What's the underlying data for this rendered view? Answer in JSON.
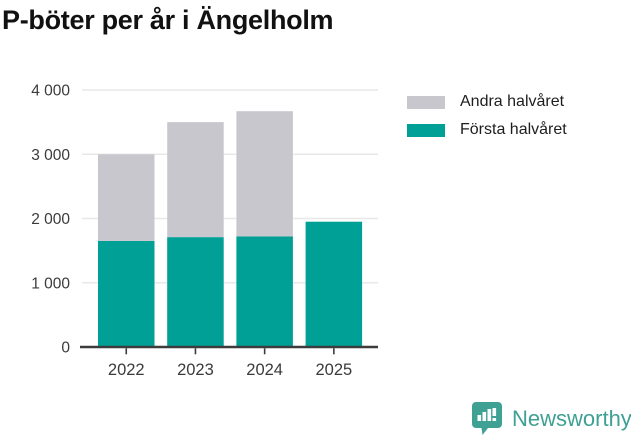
{
  "title": "P-böter per år i Ängelholm",
  "chart_data": {
    "type": "bar",
    "stacked": true,
    "title": "P-böter per år i Ängelholm",
    "categories": [
      "2022",
      "2023",
      "2024",
      "2025"
    ],
    "series": [
      {
        "name": "Andra halvåret",
        "color": "#C8C7CE",
        "values": [
          1350,
          1790,
          1950,
          0
        ]
      },
      {
        "name": "Första halvåret",
        "color": "#00A096",
        "values": [
          1650,
          1710,
          1720,
          1950
        ]
      }
    ],
    "xlabel": "",
    "ylabel": "",
    "ylim": [
      0,
      4000
    ],
    "yticks": [
      {
        "value": 0,
        "label": "0"
      },
      {
        "value": 1000,
        "label": "1 000"
      },
      {
        "value": 2000,
        "label": "2 000"
      },
      {
        "value": 3000,
        "label": "3 000"
      },
      {
        "value": 4000,
        "label": "4 000"
      }
    ],
    "grid": true,
    "legend_position": "top-right"
  },
  "footer": {
    "brand": "Newsworthy"
  },
  "colors": {
    "accent_teal": "#00A096",
    "bar_gray": "#C8C7CE",
    "grid_line": "#E8E8E8",
    "axis_line": "#3C3C3C",
    "axis_text": "#3B3B3B",
    "title_text": "#111111",
    "logo_teal": "#3FA094",
    "background": "#FFFFFF"
  }
}
